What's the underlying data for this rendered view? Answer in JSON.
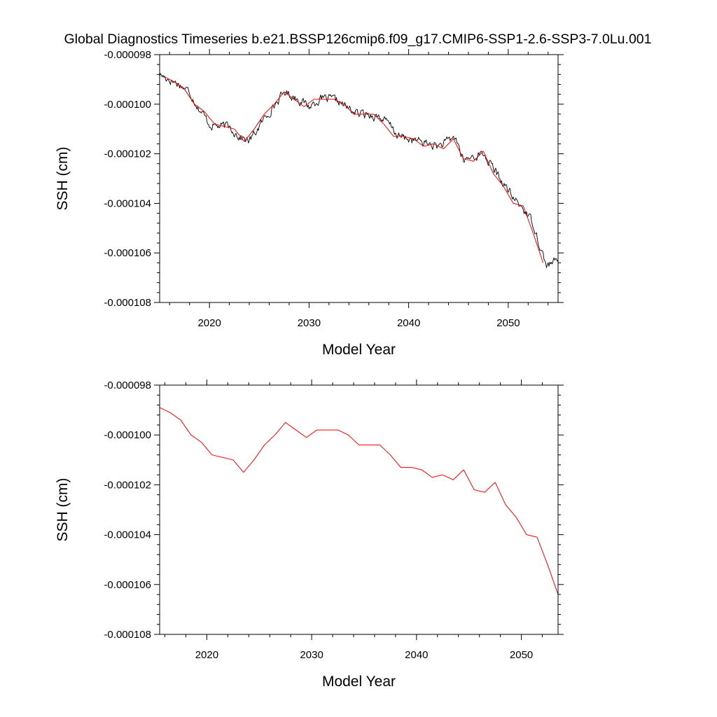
{
  "title": "Global Diagnostics Timeseries b.e21.BSSP126cmip6.f09_g17.CMIP6-SSP1-2.6-SSP3-7.0Lu.001",
  "colors": {
    "monthly": "#000000",
    "annual": "#ff0000",
    "background": "#ffffff",
    "frame": "#000000"
  },
  "chart_data": [
    {
      "type": "line",
      "xlabel": "Model Year",
      "ylabel": "SSH (cm)",
      "xlim": [
        2015,
        2055
      ],
      "ylim": [
        -0.000108,
        -9.8e-05
      ],
      "xticks": [
        2020,
        2030,
        2040,
        2050
      ],
      "xtick_labels": [
        "2020",
        "2030",
        "2040",
        "2050"
      ],
      "yticks": [
        -9.8e-05,
        -0.0001,
        -0.000102,
        -0.000104,
        -0.000106,
        -0.000108
      ],
      "ytick_labels": [
        "-0.000098",
        "-0.000100",
        "-0.000102",
        "-0.000104",
        "-0.000106",
        "-0.000108"
      ],
      "grid": false,
      "series": [
        {
          "color": "#000000",
          "smoothing": "monthly",
          "noise_seed": 17,
          "noise_amplitude": 2.5e-07,
          "x": [
            2015.0,
            2016.0,
            2017.0,
            2018.0,
            2019.0,
            2020.0,
            2021.0,
            2022.0,
            2023.0,
            2024.0,
            2025.0,
            2026.0,
            2027.0,
            2027.6,
            2028.0,
            2029.0,
            2030.0,
            2031.0,
            2032.0,
            2033.0,
            2034.0,
            2035.0,
            2036.0,
            2037.0,
            2038.0,
            2039.0,
            2040.0,
            2041.0,
            2042.0,
            2043.0,
            2044.0,
            2044.7,
            2045.5,
            2046.5,
            2047.5,
            2048.5,
            2049.5,
            2050.5,
            2051.5,
            2052.5,
            2053.2,
            2053.8,
            2054.5,
            2055.0
          ],
          "y": [
            -9.88e-05,
            -9.9e-05,
            -9.92e-05,
            -9.95e-05,
            -0.0001002,
            -0.0001008,
            -0.0001009,
            -0.0001009,
            -0.0001013,
            -0.0001015,
            -0.0001009,
            -0.0001003,
            -9.98e-05,
            -9.95e-05,
            -9.96e-05,
            -9.98e-05,
            -0.0001001,
            -9.98e-05,
            -9.98e-05,
            -9.99e-05,
            -0.0001002,
            -0.0001004,
            -0.0001004,
            -0.0001005,
            -0.0001008,
            -0.0001013,
            -0.0001014,
            -0.0001015,
            -0.0001016,
            -0.0001017,
            -0.0001015,
            -0.0001013,
            -0.0001023,
            -0.0001021,
            -0.000102,
            -0.0001026,
            -0.0001032,
            -0.0001038,
            -0.0001042,
            -0.0001048,
            -0.0001057,
            -0.0001065,
            -0.0001064,
            -0.0001063
          ]
        },
        {
          "color": "#ff0000",
          "smoothing": "annual",
          "x": [
            2015.5,
            2016.5,
            2017.5,
            2018.5,
            2019.5,
            2020.5,
            2021.5,
            2022.5,
            2023.5,
            2024.5,
            2025.5,
            2026.5,
            2027.5,
            2028.5,
            2029.5,
            2030.5,
            2031.5,
            2032.5,
            2033.5,
            2034.5,
            2035.5,
            2036.5,
            2037.5,
            2038.5,
            2039.5,
            2040.5,
            2041.5,
            2042.5,
            2043.5,
            2044.5,
            2045.5,
            2046.5,
            2047.5,
            2048.5,
            2049.5,
            2050.5,
            2051.5,
            2052.5,
            2053.5
          ],
          "y": [
            -9.89e-05,
            -9.91e-05,
            -9.94e-05,
            -0.0001,
            -0.0001003,
            -0.0001008,
            -0.0001009,
            -0.000101,
            -0.0001015,
            -0.000101,
            -0.0001004,
            -0.0001,
            -9.95e-05,
            -9.98e-05,
            -0.0001001,
            -9.98e-05,
            -9.98e-05,
            -9.98e-05,
            -0.0001,
            -0.0001004,
            -0.0001004,
            -0.0001004,
            -0.0001008,
            -0.0001013,
            -0.0001013,
            -0.0001014,
            -0.0001017,
            -0.0001016,
            -0.0001018,
            -0.0001014,
            -0.0001022,
            -0.0001023,
            -0.0001019,
            -0.0001028,
            -0.0001033,
            -0.000104,
            -0.0001041,
            -0.0001052,
            -0.0001064
          ]
        }
      ]
    },
    {
      "type": "line",
      "xlabel": "Model Year",
      "ylabel": "SSH (cm)",
      "xlim": [
        2015.5,
        2053.5
      ],
      "ylim": [
        -0.000108,
        -9.8e-05
      ],
      "xticks": [
        2020,
        2030,
        2040,
        2050
      ],
      "xtick_labels": [
        "2020",
        "2030",
        "2040",
        "2050"
      ],
      "yticks": [
        -9.8e-05,
        -0.0001,
        -0.000102,
        -0.000104,
        -0.000106,
        -0.000108
      ],
      "ytick_labels": [
        "-0.000098",
        "-0.000100",
        "-0.000102",
        "-0.000104",
        "-0.000106",
        "-0.000108"
      ],
      "grid": false,
      "series": [
        {
          "color": "#ff0000",
          "smoothing": "annual",
          "x": [
            2015.5,
            2016.5,
            2017.5,
            2018.5,
            2019.5,
            2020.5,
            2021.5,
            2022.5,
            2023.5,
            2024.5,
            2025.5,
            2026.5,
            2027.5,
            2028.5,
            2029.5,
            2030.5,
            2031.5,
            2032.5,
            2033.5,
            2034.5,
            2035.5,
            2036.5,
            2037.5,
            2038.5,
            2039.5,
            2040.5,
            2041.5,
            2042.5,
            2043.5,
            2044.5,
            2045.5,
            2046.5,
            2047.5,
            2048.5,
            2049.5,
            2050.5,
            2051.5,
            2052.5,
            2053.5
          ],
          "y": [
            -9.89e-05,
            -9.91e-05,
            -9.94e-05,
            -0.0001,
            -0.0001003,
            -0.0001008,
            -0.0001009,
            -0.000101,
            -0.0001015,
            -0.000101,
            -0.0001004,
            -0.0001,
            -9.95e-05,
            -9.98e-05,
            -0.0001001,
            -9.98e-05,
            -9.98e-05,
            -9.98e-05,
            -0.0001,
            -0.0001004,
            -0.0001004,
            -0.0001004,
            -0.0001008,
            -0.0001013,
            -0.0001013,
            -0.0001014,
            -0.0001017,
            -0.0001016,
            -0.0001018,
            -0.0001014,
            -0.0001022,
            -0.0001023,
            -0.0001019,
            -0.0001028,
            -0.0001033,
            -0.000104,
            -0.0001041,
            -0.0001052,
            -0.0001064
          ]
        }
      ]
    }
  ]
}
